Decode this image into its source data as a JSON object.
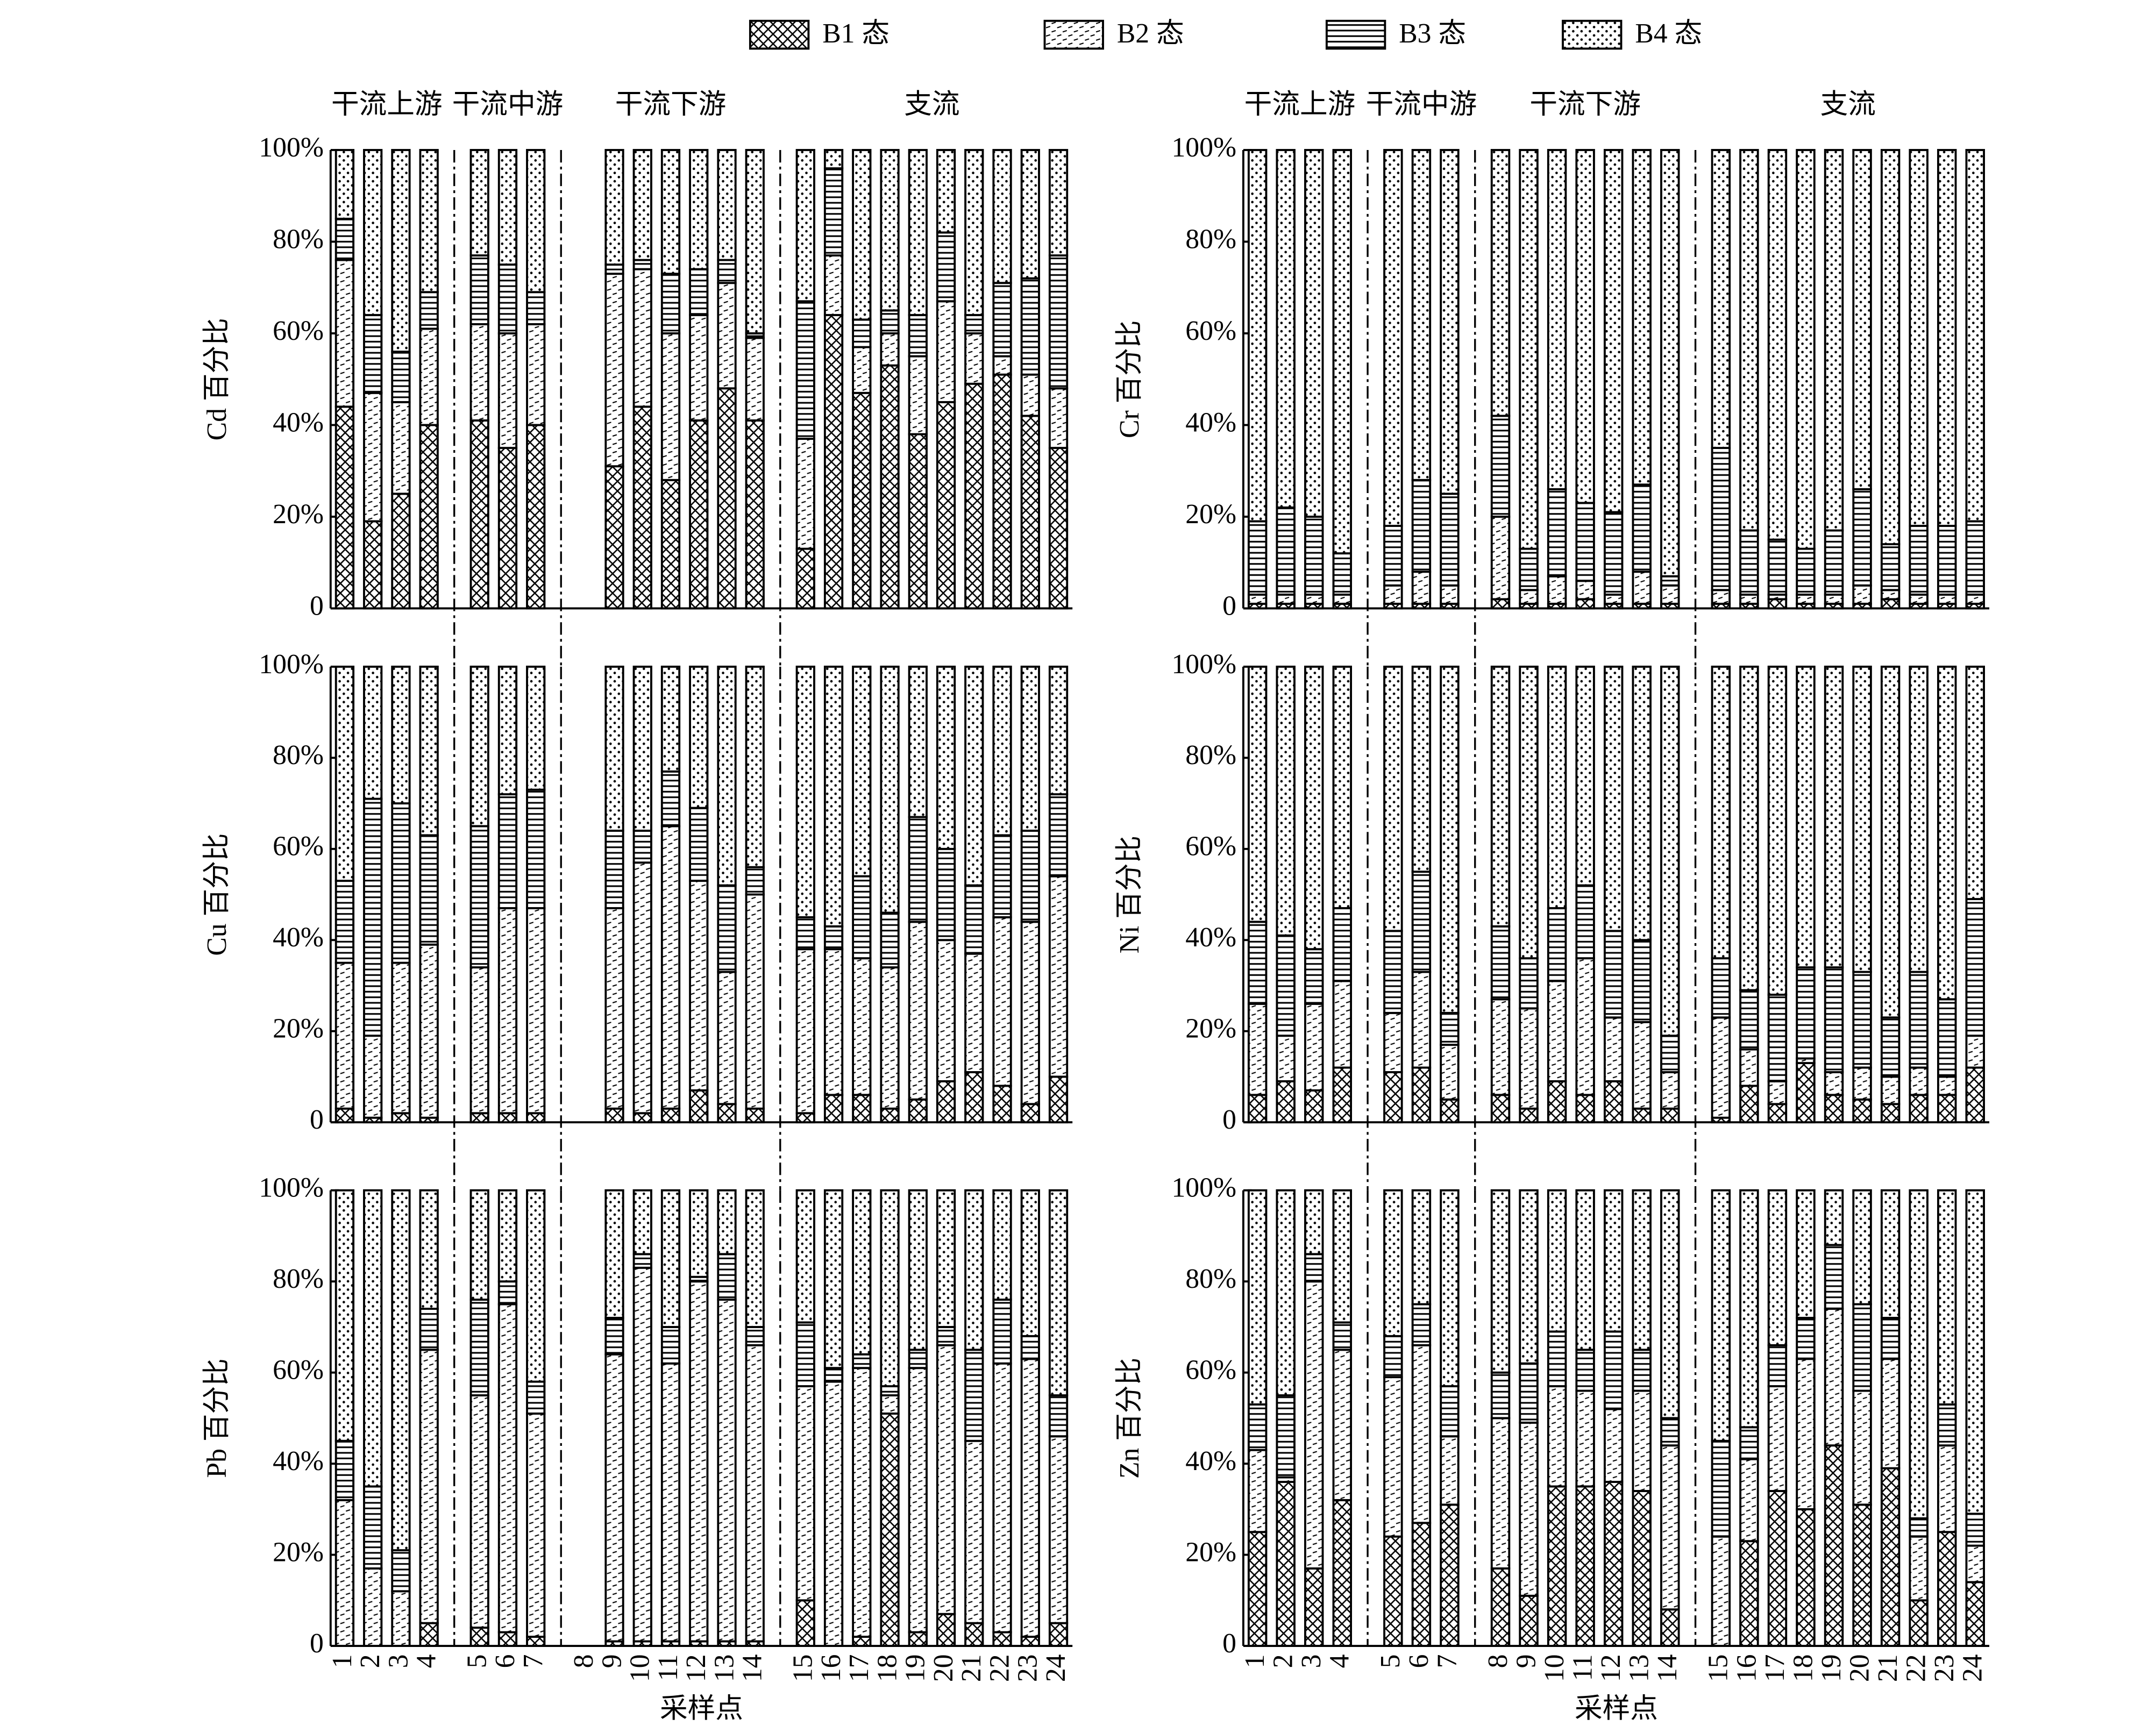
{
  "chart_data": [
    {
      "type": "bar",
      "stacked": true,
      "ylabel": "Cd 百分比",
      "groups": [
        {
          "label": "干流上游",
          "size": 4
        },
        {
          "label": "干流中游",
          "size": 3
        },
        {
          "label": "干流下游",
          "size": 7
        },
        {
          "label": "支流",
          "size": 10
        }
      ],
      "categories": [
        null,
        null,
        null,
        null,
        null,
        null,
        null,
        null,
        null,
        null,
        null,
        null,
        null,
        null,
        null,
        null,
        null,
        null,
        null,
        null,
        null,
        null,
        null,
        null
      ],
      "ylim": [
        0,
        100
      ],
      "yticks": [
        0,
        {
          "value": 20,
          "label": "20%"
        },
        {
          "value": 40,
          "label": "40%"
        },
        {
          "value": 60,
          "label": "60%"
        },
        {
          "value": 80,
          "label": "80%"
        },
        {
          "value": 100,
          "label": "100%"
        }
      ],
      "series": [
        {
          "name": "B1 态",
          "color": "#000000",
          "pattern": "cross",
          "values": [
            44,
            19,
            25,
            40,
            41,
            35,
            40,
            null,
            31,
            44,
            28,
            41,
            48,
            41,
            13,
            64,
            47,
            53,
            38,
            45,
            49,
            51,
            42,
            35
          ]
        },
        {
          "name": "B2 态",
          "color": "#000000",
          "pattern": "dash",
          "values": [
            32,
            28,
            20,
            21,
            21,
            25,
            22,
            null,
            42,
            30,
            32,
            23,
            23,
            18,
            24,
            13,
            10,
            7,
            17,
            22,
            11,
            4,
            9,
            13
          ]
        },
        {
          "name": "B3 态",
          "color": "#000000",
          "pattern": "hlines",
          "values": [
            9,
            17,
            11,
            8,
            15,
            15,
            7,
            null,
            2,
            2,
            13,
            10,
            5,
            1,
            30,
            19,
            6,
            5,
            9,
            15,
            4,
            16,
            21,
            29
          ]
        },
        {
          "name": "B4 态",
          "color": "#000000",
          "pattern": "dots",
          "values": [
            15,
            36,
            44,
            31,
            23,
            25,
            31,
            null,
            25,
            24,
            27,
            26,
            24,
            40,
            33,
            4,
            37,
            35,
            36,
            18,
            36,
            29,
            28,
            23
          ]
        }
      ]
    },
    {
      "type": "bar",
      "stacked": true,
      "ylabel": "Cr 百分比",
      "groups": [
        {
          "label": "干流上游",
          "size": 4
        },
        {
          "label": "干流中游",
          "size": 3
        },
        {
          "label": "干流下游",
          "size": 7
        },
        {
          "label": "支流",
          "size": 10
        }
      ],
      "categories": [
        null,
        null,
        null,
        null,
        null,
        null,
        null,
        null,
        null,
        null,
        null,
        null,
        null,
        null,
        null,
        null,
        null,
        null,
        null,
        null,
        null,
        null,
        null,
        null
      ],
      "ylim": [
        0,
        100
      ],
      "yticks": [
        0,
        {
          "value": 20,
          "label": "20%"
        },
        {
          "value": 40,
          "label": "40%"
        },
        {
          "value": 60,
          "label": "60%"
        },
        {
          "value": 80,
          "label": "80%"
        },
        {
          "value": 100,
          "label": "100%"
        }
      ],
      "series": [
        {
          "name": "B1 态",
          "color": "#000000",
          "pattern": "cross",
          "values": [
            1,
            1,
            1,
            1,
            1,
            1,
            1,
            2,
            1,
            1,
            2,
            1,
            1,
            1,
            1,
            1,
            2,
            1,
            1,
            1,
            2,
            1,
            1,
            1
          ]
        },
        {
          "name": "B2 态",
          "color": "#000000",
          "pattern": "dash",
          "values": [
            2,
            2,
            2,
            2,
            4,
            7,
            4,
            18,
            3,
            6,
            4,
            2,
            7,
            4,
            3,
            2,
            1,
            2,
            2,
            4,
            2,
            2,
            2,
            2
          ]
        },
        {
          "name": "B3 态",
          "color": "#000000",
          "pattern": "hlines",
          "values": [
            16,
            19,
            17,
            9,
            13,
            20,
            20,
            22,
            9,
            19,
            17,
            18,
            19,
            2,
            31,
            14,
            12,
            10,
            14,
            21,
            10,
            15,
            15,
            16
          ]
        },
        {
          "name": "B4 态",
          "color": "#000000",
          "pattern": "dots",
          "values": [
            81,
            78,
            80,
            88,
            82,
            72,
            75,
            58,
            87,
            74,
            77,
            79,
            73,
            93,
            65,
            83,
            85,
            87,
            83,
            74,
            86,
            82,
            82,
            81
          ]
        }
      ]
    },
    {
      "type": "bar",
      "stacked": true,
      "ylabel": "Cu 百分比",
      "categories": [
        null,
        null,
        null,
        null,
        null,
        null,
        null,
        null,
        null,
        null,
        null,
        null,
        null,
        null,
        null,
        null,
        null,
        null,
        null,
        null,
        null,
        null,
        null,
        null
      ],
      "ylim": [
        0,
        100
      ],
      "yticks": [
        0,
        {
          "value": 20,
          "label": "20%"
        },
        {
          "value": 40,
          "label": "40%"
        },
        {
          "value": 60,
          "label": "60%"
        },
        {
          "value": 80,
          "label": "80%"
        },
        {
          "value": 100,
          "label": "100%"
        }
      ],
      "series": [
        {
          "name": "B1 态",
          "color": "#000000",
          "pattern": "cross",
          "values": [
            3,
            1,
            2,
            1,
            2,
            2,
            2,
            null,
            3,
            2,
            3,
            7,
            4,
            3,
            2,
            6,
            6,
            3,
            5,
            9,
            11,
            8,
            4,
            10
          ]
        },
        {
          "name": "B2 态",
          "color": "#000000",
          "pattern": "dash",
          "values": [
            32,
            18,
            33,
            38,
            32,
            45,
            45,
            null,
            44,
            55,
            62,
            46,
            29,
            47,
            36,
            32,
            30,
            31,
            39,
            31,
            26,
            37,
            40,
            44
          ]
        },
        {
          "name": "B3 态",
          "color": "#000000",
          "pattern": "hlines",
          "values": [
            18,
            52,
            35,
            24,
            31,
            25,
            26,
            null,
            17,
            7,
            12,
            16,
            19,
            6,
            7,
            5,
            18,
            12,
            23,
            20,
            15,
            18,
            20,
            18
          ]
        },
        {
          "name": "B4 态",
          "color": "#000000",
          "pattern": "dots",
          "values": [
            47,
            29,
            30,
            37,
            35,
            28,
            27,
            null,
            36,
            36,
            23,
            31,
            48,
            44,
            55,
            57,
            46,
            54,
            33,
            40,
            48,
            37,
            36,
            28
          ]
        }
      ]
    },
    {
      "type": "bar",
      "stacked": true,
      "ylabel": "Ni 百分比",
      "categories": [
        null,
        null,
        null,
        null,
        null,
        null,
        null,
        null,
        null,
        null,
        null,
        null,
        null,
        null,
        null,
        null,
        null,
        null,
        null,
        null,
        null,
        null,
        null,
        null
      ],
      "ylim": [
        0,
        100
      ],
      "yticks": [
        0,
        {
          "value": 20,
          "label": "20%"
        },
        {
          "value": 40,
          "label": "40%"
        },
        {
          "value": 60,
          "label": "60%"
        },
        {
          "value": 80,
          "label": "80%"
        },
        {
          "value": 100,
          "label": "100%"
        }
      ],
      "series": [
        {
          "name": "B1 态",
          "color": "#000000",
          "pattern": "cross",
          "values": [
            6,
            9,
            7,
            12,
            11,
            12,
            5,
            6,
            3,
            9,
            6,
            9,
            3,
            3,
            1,
            8,
            4,
            13,
            6,
            5,
            4,
            6,
            6,
            12
          ]
        },
        {
          "name": "B2 态",
          "color": "#000000",
          "pattern": "dash",
          "values": [
            20,
            10,
            19,
            19,
            13,
            21,
            12,
            21,
            22,
            22,
            30,
            14,
            19,
            8,
            22,
            8,
            5,
            1,
            5,
            7,
            6,
            6,
            4,
            7
          ]
        },
        {
          "name": "B3 态",
          "color": "#000000",
          "pattern": "hlines",
          "values": [
            18,
            22,
            12,
            16,
            18,
            22,
            7,
            16,
            11,
            16,
            16,
            19,
            18,
            8,
            13,
            13,
            19,
            20,
            23,
            21,
            13,
            21,
            17,
            30
          ]
        },
        {
          "name": "B4 态",
          "color": "#000000",
          "pattern": "dots",
          "values": [
            56,
            59,
            62,
            53,
            58,
            45,
            76,
            57,
            64,
            53,
            48,
            58,
            60,
            81,
            64,
            71,
            72,
            66,
            66,
            67,
            77,
            67,
            73,
            51
          ]
        }
      ]
    },
    {
      "type": "bar",
      "stacked": true,
      "ylabel": "Pb 百分比",
      "xlabel": "采样点",
      "categories": [
        "1",
        "2",
        "3",
        "4",
        "5",
        "6",
        "7",
        "8",
        "9",
        "10",
        "11",
        "12",
        "13",
        "14",
        "15",
        "16",
        "17",
        "18",
        "19",
        "20",
        "21",
        "22",
        "23",
        "24"
      ],
      "ylim": [
        0,
        100
      ],
      "yticks": [
        0,
        {
          "value": 20,
          "label": "20%"
        },
        {
          "value": 40,
          "label": "40%"
        },
        {
          "value": 60,
          "label": "60%"
        },
        {
          "value": 80,
          "label": "80%"
        },
        {
          "value": 100,
          "label": "100%"
        }
      ],
      "series": [
        {
          "name": "B1 态",
          "color": "#000000",
          "pattern": "cross",
          "values": [
            0,
            0,
            0,
            5,
            4,
            3,
            2,
            null,
            1,
            1,
            1,
            1,
            1,
            1,
            10,
            0,
            2,
            51,
            3,
            7,
            5,
            3,
            2,
            5
          ]
        },
        {
          "name": "B2 态",
          "color": "#000000",
          "pattern": "dash",
          "values": [
            32,
            17,
            12,
            60,
            51,
            72,
            49,
            null,
            63,
            82,
            61,
            79,
            75,
            65,
            47,
            58,
            59,
            4,
            58,
            59,
            40,
            59,
            61,
            41
          ]
        },
        {
          "name": "B3 态",
          "color": "#000000",
          "pattern": "hlines",
          "values": [
            13,
            18,
            9,
            9,
            21,
            5,
            7,
            null,
            8,
            3,
            8,
            1,
            10,
            4,
            14,
            3,
            3,
            2,
            4,
            4,
            20,
            14,
            5,
            9
          ]
        },
        {
          "name": "B4 态",
          "color": "#000000",
          "pattern": "dots",
          "values": [
            55,
            65,
            79,
            26,
            24,
            20,
            42,
            null,
            28,
            14,
            30,
            19,
            14,
            30,
            29,
            39,
            36,
            43,
            35,
            30,
            35,
            24,
            32,
            45
          ]
        }
      ]
    },
    {
      "type": "bar",
      "stacked": true,
      "ylabel": "Zn 百分比",
      "xlabel": "采样点",
      "categories": [
        "1",
        "2",
        "3",
        "4",
        "5",
        "6",
        "7",
        "8",
        "9",
        "10",
        "11",
        "12",
        "13",
        "14",
        "15",
        "16",
        "17",
        "18",
        "19",
        "20",
        "21",
        "22",
        "23",
        "24"
      ],
      "ylim": [
        0,
        100
      ],
      "yticks": [
        0,
        {
          "value": 20,
          "label": "20%"
        },
        {
          "value": 40,
          "label": "40%"
        },
        {
          "value": 60,
          "label": "60%"
        },
        {
          "value": 80,
          "label": "80%"
        },
        {
          "value": 100,
          "label": "100%"
        }
      ],
      "series": [
        {
          "name": "B1 态",
          "color": "#000000",
          "pattern": "cross",
          "values": [
            25,
            36,
            17,
            32,
            24,
            27,
            31,
            17,
            11,
            35,
            35,
            36,
            34,
            8,
            0,
            23,
            34,
            30,
            44,
            31,
            39,
            10,
            25,
            14
          ]
        },
        {
          "name": "B2 态",
          "color": "#000000",
          "pattern": "dash",
          "values": [
            18,
            1,
            63,
            33,
            35,
            39,
            15,
            33,
            38,
            22,
            21,
            16,
            22,
            36,
            24,
            18,
            23,
            33,
            30,
            25,
            24,
            14,
            19,
            8
          ]
        },
        {
          "name": "B3 态",
          "color": "#000000",
          "pattern": "hlines",
          "values": [
            10,
            18,
            6,
            6,
            9,
            9,
            11,
            10,
            13,
            12,
            9,
            17,
            9,
            6,
            21,
            7,
            9,
            9,
            14,
            19,
            9,
            4,
            9,
            7
          ]
        },
        {
          "name": "B4 态",
          "color": "#000000",
          "pattern": "dots",
          "values": [
            47,
            45,
            14,
            29,
            32,
            25,
            43,
            40,
            38,
            31,
            35,
            31,
            35,
            50,
            55,
            52,
            34,
            28,
            12,
            25,
            28,
            72,
            47,
            71
          ]
        }
      ]
    }
  ]
}
